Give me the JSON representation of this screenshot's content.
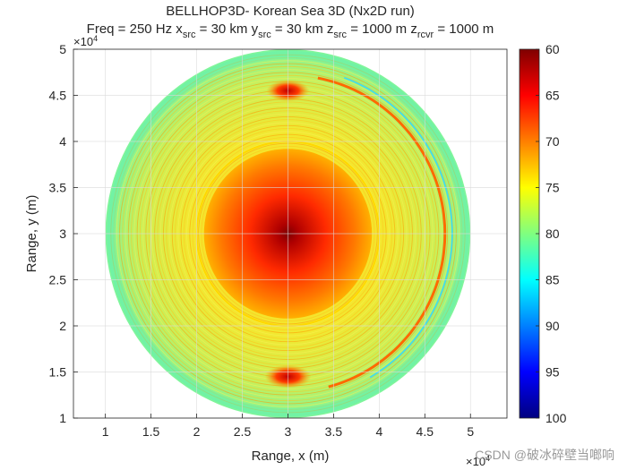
{
  "chart_data": {
    "type": "heatmap",
    "title": "BELLHOP3D- Korean Sea 3D (Nx2D run)",
    "subtitle_parts": [
      {
        "text": "Freq = 250 Hz   x",
        "sub": false
      },
      {
        "text": "src",
        "sub": true
      },
      {
        "text": " = 30 km   y",
        "sub": false
      },
      {
        "text": "src",
        "sub": true
      },
      {
        "text": " = 30 km   z",
        "sub": false
      },
      {
        "text": "src",
        "sub": true
      },
      {
        "text": " = 1000 m     z",
        "sub": false
      },
      {
        "text": "rcvr",
        "sub": true
      },
      {
        "text": " = 1000 m",
        "sub": false
      }
    ],
    "xlabel": "Range, x (m)",
    "ylabel": "Range, y (m)",
    "x_exponent": "×10",
    "x_exponent_power": "4",
    "y_exponent": "×10",
    "y_exponent_power": "4",
    "xlim": [
      0.65,
      5.4
    ],
    "ylim": [
      1.0,
      5.0
    ],
    "xticks": [
      1,
      1.5,
      2,
      2.5,
      3,
      3.5,
      4,
      4.5,
      5
    ],
    "xtick_labels": [
      "1",
      "1.5",
      "2",
      "2.5",
      "3",
      "3.5",
      "4",
      "4.5",
      "5"
    ],
    "yticks": [
      1,
      1.5,
      2,
      2.5,
      3,
      3.5,
      4,
      4.5,
      5
    ],
    "ytick_labels": [
      "1",
      "1.5",
      "2",
      "2.5",
      "3",
      "3.5",
      "4",
      "4.5",
      "5"
    ],
    "grid": true,
    "source_center": [
      3.0,
      3.0
    ],
    "field_radius": 2.0,
    "colorbar": {
      "min": 60,
      "max": 100,
      "reversed": true,
      "colormap": "jet",
      "ticks": [
        60,
        65,
        70,
        75,
        80,
        85,
        90,
        95,
        100
      ],
      "tick_labels": [
        "60",
        "65",
        "70",
        "75",
        "80",
        "85",
        "90",
        "95",
        "100"
      ]
    },
    "field_features": [
      {
        "feature": "source focus",
        "loss_db": 60
      },
      {
        "feature": "inner disk edge",
        "loss_db": 70
      },
      {
        "feature": "background",
        "loss_db": 76
      },
      {
        "feature": "outer edge",
        "loss_db": 82
      },
      {
        "feature": "north caustic",
        "loss_db": 64
      },
      {
        "feature": "south caustic",
        "loss_db": 64
      },
      {
        "feature": "east arc",
        "loss_db": 70
      }
    ]
  },
  "watermark": "CSDN @破冰碎壁当啷响"
}
